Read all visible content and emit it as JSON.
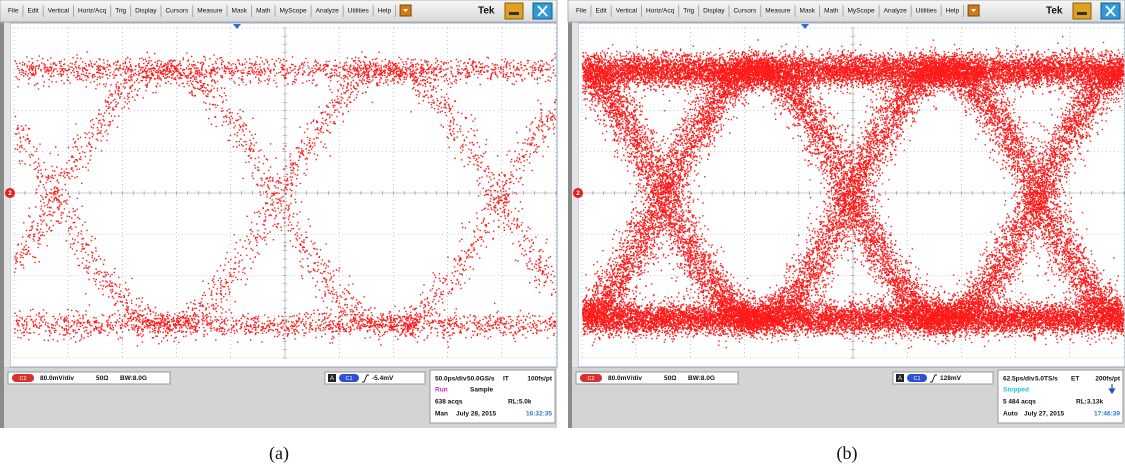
{
  "menu": [
    "File",
    "Edit",
    "Vertical",
    "Horiz/Acq",
    "Trig",
    "Display",
    "Cursors",
    "Measure",
    "Mask",
    "Math",
    "MyScope",
    "Analyze",
    "Utilities",
    "Help"
  ],
  "brand": "Tek",
  "panels": [
    {
      "caption": "(a)",
      "marker": "2",
      "channel": {
        "badge": "C2",
        "scale": "80.0mV/div",
        "impedance": "50Ω",
        "bandwidth": "BW:8.0G"
      },
      "trigger": {
        "source": "A",
        "channel": "C1",
        "level": "-5.4mV"
      },
      "acquisition": {
        "horizontal": "50.0ps/div",
        "sample_rate": "50.0GS/s",
        "mode": "IT",
        "resolution": "100fs/pt",
        "state": "Run",
        "state_color": "#d21fd2",
        "acq_mode": "Sample",
        "acqs": "638 acqs",
        "record_length": "RL:5.0k",
        "trigger_mode": "Man",
        "date": "July 28, 2015",
        "time": "16:32:35"
      }
    },
    {
      "caption": "(b)",
      "marker": "2",
      "channel": {
        "badge": "C2",
        "scale": "80.0mV/div",
        "impedance": "50Ω",
        "bandwidth": "BW:8.0G"
      },
      "trigger": {
        "source": "A",
        "channel": "C1",
        "level": "128mV"
      },
      "acquisition": {
        "horizontal": "62.5ps/div",
        "sample_rate": "5.0TS/s",
        "mode": "ET",
        "resolution": "200fs/pt",
        "state": "Stopped",
        "state_color": "#1fc4d2",
        "acqs": "5 484 acqs",
        "record_length": "RL:3.13k",
        "trigger_mode": "Auto",
        "date": "July 27, 2015",
        "time": "17:46:39"
      }
    }
  ]
}
